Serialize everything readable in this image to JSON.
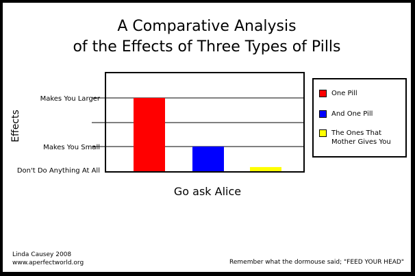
{
  "chart_data": {
    "type": "bar",
    "title_line1": "A Comparative Analysis",
    "title_line2": "of the Effects of Three Types of Pills",
    "xlabel": "Go ask Alice",
    "ylabel": "Effects",
    "y_tick_labels": [
      "Don't Do Anything At All",
      "Makes You Small",
      "Makes You Larger"
    ],
    "ylim": [
      0,
      3
    ],
    "grid": true,
    "legend_position": "right",
    "series": [
      {
        "name": "One Pill",
        "value": 3.0,
        "color": "#FF0000"
      },
      {
        "name": "And One Pill",
        "value": 1.0,
        "color": "#0000FF"
      },
      {
        "name": "The Ones That Mother Gives You",
        "value": 0.12,
        "color": "#FFFF00"
      }
    ]
  },
  "legend": {
    "items": [
      {
        "label": "One Pill",
        "color": "#FF0000"
      },
      {
        "label": "And One Pill",
        "color": "#0000FF"
      },
      {
        "label": "The Ones That Mother Gives You",
        "color": "#FFFF00"
      }
    ]
  },
  "footer": {
    "author": "Linda Causey 2008",
    "website": "www.aperfectworld.org",
    "quote": "Remember what the dormouse said; \"FEED YOUR HEAD\""
  }
}
